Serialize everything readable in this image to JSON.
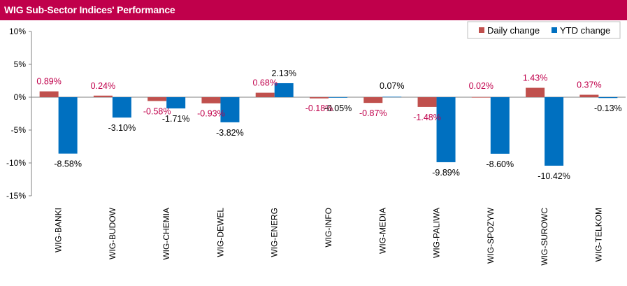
{
  "title": "WIG Sub-Sector Indices' Performance",
  "colors": {
    "title_bg": "#c0004b",
    "daily": "#c0504d",
    "ytd": "#0070c0",
    "daily_label": "#c0004b",
    "ytd_label": "#000000"
  },
  "chart_data": {
    "type": "bar",
    "title": "WIG Sub-Sector Indices' Performance",
    "categories": [
      "WIG-BANKI",
      "WIG-BUDOW",
      "WIG-CHEMIA",
      "WIG-DEWEL",
      "WIG-ENERG",
      "WIG-INFO",
      "WIG-MEDIA",
      "WIG-PALIWA",
      "WIG-SPOZYW",
      "WIG-SUROWC",
      "WIG-TELKOM"
    ],
    "series": [
      {
        "name": "Daily change",
        "values": [
          0.89,
          0.24,
          -0.58,
          -0.93,
          0.68,
          -0.18,
          -0.87,
          -1.48,
          0.02,
          1.43,
          0.37
        ],
        "labels": [
          "0.89%",
          "0.24%",
          "-0.58%",
          "-0.93%",
          "0.68%",
          "-0.18%",
          "-0.87%",
          "-1.48%",
          "0.02%",
          "1.43%",
          "0.37%"
        ]
      },
      {
        "name": "YTD change",
        "values": [
          -8.58,
          -3.1,
          -1.71,
          -3.82,
          2.13,
          -0.05,
          0.07,
          -9.89,
          -8.6,
          -10.42,
          -0.13
        ],
        "labels": [
          "-8.58%",
          "-3.10%",
          "-1.71%",
          "-3.82%",
          "2.13%",
          "-0.05%",
          "0.07%",
          "-9.89%",
          "-8.60%",
          "-10.42%",
          "-0.13%"
        ]
      }
    ],
    "ylim": [
      -15,
      10
    ],
    "yticks": [
      10,
      5,
      0,
      -5,
      -10,
      -15
    ],
    "ytick_labels": [
      "10%",
      "5%",
      "0%",
      "-5%",
      "-10%",
      "-15%"
    ],
    "legend_position": "top-right",
    "grid": false
  }
}
